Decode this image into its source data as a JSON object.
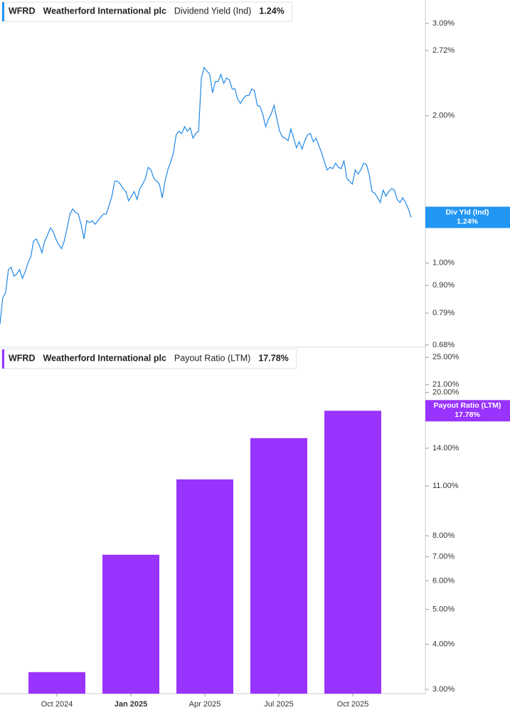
{
  "chart_data": [
    {
      "type": "line",
      "header": {
        "ticker": "WFRD",
        "company": "Weatherford International plc",
        "metric": "Dividend Yield (Ind)",
        "value": "1.24%"
      },
      "badge": {
        "label": "Div Yld (Ind)",
        "value": "1.24%"
      },
      "color": "#1f88e5",
      "badge_color": "#2196f3",
      "log_scale": true,
      "ylim": [
        0.673,
        3.45
      ],
      "yticks": [
        {
          "value": 0.68,
          "label": "0.68%"
        },
        {
          "value": 0.79,
          "label": "0.79%"
        },
        {
          "value": 0.9,
          "label": "0.90%"
        },
        {
          "value": 1.0,
          "label": "1.00%"
        },
        {
          "value": 2.0,
          "label": "2.00%"
        },
        {
          "value": 2.72,
          "label": "2.72%"
        },
        {
          "value": 3.09,
          "label": "3.09%"
        }
      ],
      "values": [
        0.75,
        0.85,
        0.87,
        0.97,
        0.98,
        0.94,
        0.95,
        0.97,
        0.93,
        0.96,
        1.0,
        1.03,
        1.11,
        1.12,
        1.09,
        1.05,
        1.11,
        1.14,
        1.18,
        1.16,
        1.12,
        1.09,
        1.07,
        1.11,
        1.18,
        1.26,
        1.29,
        1.27,
        1.26,
        1.2,
        1.12,
        1.22,
        1.21,
        1.22,
        1.2,
        1.22,
        1.24,
        1.26,
        1.26,
        1.31,
        1.37,
        1.47,
        1.47,
        1.45,
        1.42,
        1.4,
        1.34,
        1.37,
        1.4,
        1.35,
        1.42,
        1.45,
        1.49,
        1.57,
        1.55,
        1.49,
        1.47,
        1.45,
        1.36,
        1.47,
        1.55,
        1.61,
        1.68,
        1.83,
        1.86,
        1.84,
        1.9,
        1.86,
        1.89,
        1.8,
        1.84,
        1.86,
        2.39,
        2.51,
        2.47,
        2.43,
        2.23,
        2.35,
        2.35,
        2.43,
        2.33,
        2.39,
        2.37,
        2.27,
        2.27,
        2.16,
        2.12,
        2.17,
        2.2,
        2.2,
        2.27,
        2.25,
        2.1,
        2.09,
        2.01,
        1.9,
        1.97,
        2.02,
        2.1,
        1.97,
        1.86,
        1.81,
        1.8,
        1.78,
        1.88,
        1.8,
        1.72,
        1.77,
        1.71,
        1.78,
        1.83,
        1.84,
        1.77,
        1.8,
        1.74,
        1.68,
        1.61,
        1.55,
        1.57,
        1.56,
        1.6,
        1.57,
        1.56,
        1.62,
        1.49,
        1.47,
        1.45,
        1.55,
        1.52,
        1.55,
        1.6,
        1.59,
        1.52,
        1.4,
        1.39,
        1.36,
        1.33,
        1.41,
        1.37,
        1.4,
        1.42,
        1.41,
        1.35,
        1.33,
        1.36,
        1.33,
        1.29,
        1.24
      ]
    },
    {
      "type": "bar",
      "header": {
        "ticker": "WFRD",
        "company": "Weatherford International plc",
        "metric": "Payout Ratio (LTM)",
        "value": "17.78%"
      },
      "badge": {
        "label": "Payout Ratio (LTM)",
        "value": "17.78%"
      },
      "color": "#9933ff",
      "badge_color": "#9933ff",
      "log_scale": true,
      "categories": [
        "Oct 2024",
        "Jan 2025",
        "Apr 2025",
        "Jul 2025",
        "Oct 2025"
      ],
      "values": [
        3.35,
        7.09,
        11.47,
        14.93,
        17.78
      ],
      "ylim": [
        2.92,
        26.2
      ],
      "yticks": [
        {
          "value": 3,
          "label": "3.00%"
        },
        {
          "value": 4,
          "label": "4.00%"
        },
        {
          "value": 5,
          "label": "5.00%"
        },
        {
          "value": 6,
          "label": "6.00%"
        },
        {
          "value": 7,
          "label": "7.00%"
        },
        {
          "value": 8,
          "label": "8.00%"
        },
        {
          "value": 11,
          "label": "11.00%"
        },
        {
          "value": 14,
          "label": "14.00%"
        },
        {
          "value": 20,
          "label": "20.00%"
        },
        {
          "value": 21,
          "label": "21.00%"
        },
        {
          "value": 25,
          "label": "25.00%"
        }
      ]
    }
  ]
}
